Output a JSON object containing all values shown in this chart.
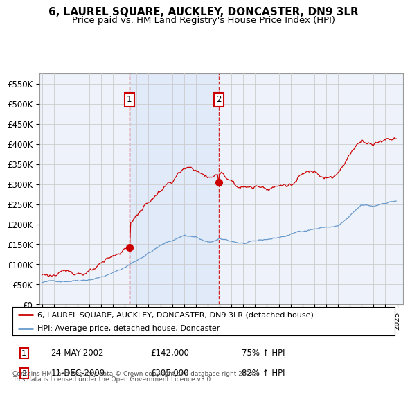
{
  "title": "6, LAUREL SQUARE, AUCKLEY, DONCASTER, DN9 3LR",
  "subtitle": "Price paid vs. HM Land Registry's House Price Index (HPI)",
  "title_fontsize": 11,
  "subtitle_fontsize": 9.5,
  "ylim": [
    0,
    575000
  ],
  "yticks": [
    0,
    50000,
    100000,
    150000,
    200000,
    250000,
    300000,
    350000,
    400000,
    450000,
    500000,
    550000
  ],
  "ytick_labels": [
    "£0",
    "£50K",
    "£100K",
    "£150K",
    "£200K",
    "£250K",
    "£300K",
    "£350K",
    "£400K",
    "£450K",
    "£500K",
    "£550K"
  ],
  "xlim_start": 1994.8,
  "xlim_end": 2025.5,
  "purchase1_x": 2002.38,
  "purchase1_y": 142000,
  "purchase2_x": 2009.95,
  "purchase2_y": 305000,
  "purchase1_label": "24-MAY-2002",
  "purchase1_price": "£142,000",
  "purchase1_hpi": "75% ↑ HPI",
  "purchase2_label": "11-DEC-2009",
  "purchase2_price": "£305,000",
  "purchase2_hpi": "82% ↑ HPI",
  "line1_color": "#cc0000",
  "line2_color": "#6699cc",
  "legend_label1": "6, LAUREL SQUARE, AUCKLEY, DONCASTER, DN9 3LR (detached house)",
  "legend_label2": "HPI: Average price, detached house, Doncaster",
  "footnote1": "Contains HM Land Registry data © Crown copyright and database right 2024.",
  "footnote2": "This data is licensed under the Open Government Licence v3.0.",
  "shade_color": "#dde8f8",
  "grid_color": "#cccccc",
  "bg_color": "#eef2fb"
}
